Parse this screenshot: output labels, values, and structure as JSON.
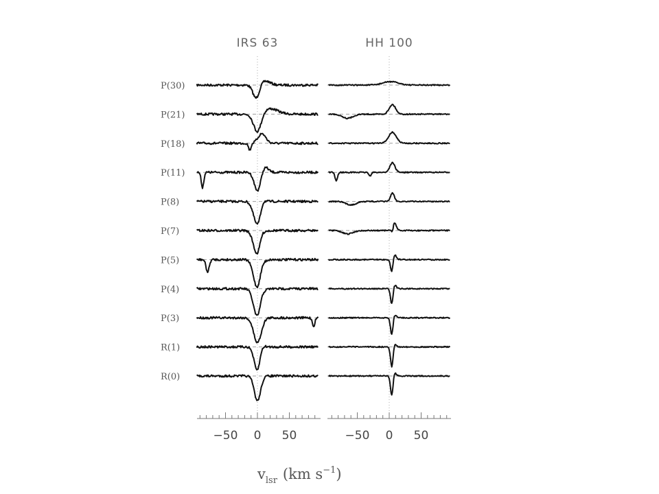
{
  "chart_data": {
    "type": "line",
    "panels": [
      {
        "title": "IRS 63"
      },
      {
        "title": "HH 100"
      }
    ],
    "transitions": [
      "P(30)",
      "P(21)",
      "P(18)",
      "P(11)",
      "P(8)",
      "P(7)",
      "P(5)",
      "P(4)",
      "P(3)",
      "R(1)",
      "R(0)"
    ],
    "xlabel_base": "v",
    "xlabel_sub": "lsr",
    "xlabel_units": "(km s",
    "xlabel_sup": "−1",
    "xlabel_close": ")",
    "xlim": [
      -95,
      95
    ],
    "xticks": [
      -50,
      0,
      50
    ],
    "xtick_labels": [
      "−50",
      "0",
      "50"
    ],
    "minor_tick_step": 10,
    "grid": false,
    "series": [
      {
        "panel": 0,
        "transition": "P(30)",
        "absorption": [
          {
            "v": -2,
            "depth": 20,
            "width": 5
          }
        ],
        "emission": [
          {
            "v": 12,
            "height": 6,
            "width": 8
          }
        ]
      },
      {
        "panel": 0,
        "transition": "P(21)",
        "absorption": [
          {
            "v": 0,
            "depth": 27,
            "width": 6
          }
        ],
        "emission": [
          {
            "v": 20,
            "height": 8,
            "width": 12
          }
        ]
      },
      {
        "panel": 0,
        "transition": "P(18)",
        "absorption": [
          {
            "v": -12,
            "depth": 10,
            "width": 2
          }
        ],
        "emission": [
          {
            "v": 7,
            "height": 14,
            "width": 6
          }
        ]
      },
      {
        "panel": 0,
        "transition": "P(11)",
        "absorption": [
          {
            "v": -86,
            "depth": 22,
            "width": 2
          },
          {
            "v": 0,
            "depth": 27,
            "width": 5
          }
        ],
        "emission": [
          {
            "v": 12,
            "height": 8,
            "width": 5
          }
        ]
      },
      {
        "panel": 0,
        "transition": "P(8)",
        "absorption": [
          {
            "v": 0,
            "depth": 34,
            "width": 6
          }
        ],
        "emission": [
          {
            "v": 8,
            "height": 8,
            "width": 4
          }
        ]
      },
      {
        "panel": 0,
        "transition": "P(7)",
        "absorption": [
          {
            "v": 0,
            "depth": 36,
            "width": 6
          }
        ],
        "emission": [
          {
            "v": 6,
            "height": 10,
            "width": 4
          }
        ]
      },
      {
        "panel": 0,
        "transition": "P(5)",
        "absorption": [
          {
            "v": -78,
            "depth": 18,
            "width": 2.5
          },
          {
            "v": 0,
            "depth": 42,
            "width": 6
          }
        ],
        "emission": [
          {
            "v": 6,
            "height": 8,
            "width": 4
          }
        ]
      },
      {
        "panel": 0,
        "transition": "P(4)",
        "absorption": [
          {
            "v": 0,
            "depth": 42,
            "width": 6
          }
        ],
        "emission": [
          {
            "v": 6,
            "height": 8,
            "width": 4
          }
        ]
      },
      {
        "panel": 0,
        "transition": "P(3)",
        "absorption": [
          {
            "v": 0,
            "depth": 36,
            "width": 6
          },
          {
            "v": 88,
            "depth": 12,
            "width": 2
          }
        ],
        "emission": []
      },
      {
        "panel": 0,
        "transition": "R(1)",
        "absorption": [
          {
            "v": 0,
            "depth": 36,
            "width": 5
          }
        ],
        "emission": [
          {
            "v": 6,
            "height": 8,
            "width": 4
          }
        ]
      },
      {
        "panel": 0,
        "transition": "R(0)",
        "absorption": [
          {
            "v": 0,
            "depth": 36,
            "width": 5
          }
        ],
        "emission": []
      },
      {
        "panel": 1,
        "transition": "P(30)",
        "absorption": [],
        "emission": [
          {
            "v": 2,
            "height": 5,
            "width": 12
          }
        ]
      },
      {
        "panel": 1,
        "transition": "P(21)",
        "absorption": [
          {
            "v": -65,
            "depth": 6,
            "width": 8
          }
        ],
        "emission": [
          {
            "v": 5,
            "height": 14,
            "width": 5
          }
        ]
      },
      {
        "panel": 1,
        "transition": "P(18)",
        "absorption": [],
        "emission": [
          {
            "v": 5,
            "height": 16,
            "width": 6
          }
        ]
      },
      {
        "panel": 1,
        "transition": "P(11)",
        "absorption": [
          {
            "v": -83,
            "depth": 12,
            "width": 2
          },
          {
            "v": -30,
            "depth": 5,
            "width": 2
          }
        ],
        "emission": [
          {
            "v": 5,
            "height": 14,
            "width": 4
          }
        ]
      },
      {
        "panel": 1,
        "transition": "P(8)",
        "absorption": [
          {
            "v": -60,
            "depth": 5,
            "width": 8
          }
        ],
        "emission": [
          {
            "v": 5,
            "height": 12,
            "width": 3
          }
        ]
      },
      {
        "panel": 1,
        "transition": "P(7)",
        "absorption": [
          {
            "v": -65,
            "depth": 5,
            "width": 8
          },
          {
            "v": 5,
            "depth": 8,
            "width": 1.5
          }
        ],
        "emission": [
          {
            "v": 8,
            "height": 12,
            "width": 3
          }
        ]
      },
      {
        "panel": 1,
        "transition": "P(5)",
        "absorption": [
          {
            "v": 4,
            "depth": 20,
            "width": 2
          }
        ],
        "emission": [
          {
            "v": 8,
            "height": 8,
            "width": 3
          }
        ]
      },
      {
        "panel": 1,
        "transition": "P(4)",
        "absorption": [
          {
            "v": 4,
            "depth": 24,
            "width": 2
          }
        ],
        "emission": [
          {
            "v": 8,
            "height": 6,
            "width": 3
          }
        ]
      },
      {
        "panel": 1,
        "transition": "P(3)",
        "absorption": [
          {
            "v": 4,
            "depth": 26,
            "width": 2
          }
        ],
        "emission": [
          {
            "v": 8,
            "height": 5,
            "width": 3
          }
        ]
      },
      {
        "panel": 1,
        "transition": "R(1)",
        "absorption": [
          {
            "v": 4,
            "depth": 30,
            "width": 2
          }
        ],
        "emission": [
          {
            "v": 8,
            "height": 4,
            "width": 3
          }
        ]
      },
      {
        "panel": 1,
        "transition": "R(0)",
        "absorption": [
          {
            "v": 4,
            "depth": 30,
            "width": 2
          }
        ],
        "emission": [
          {
            "v": 8,
            "height": 5,
            "width": 3
          }
        ]
      }
    ]
  }
}
